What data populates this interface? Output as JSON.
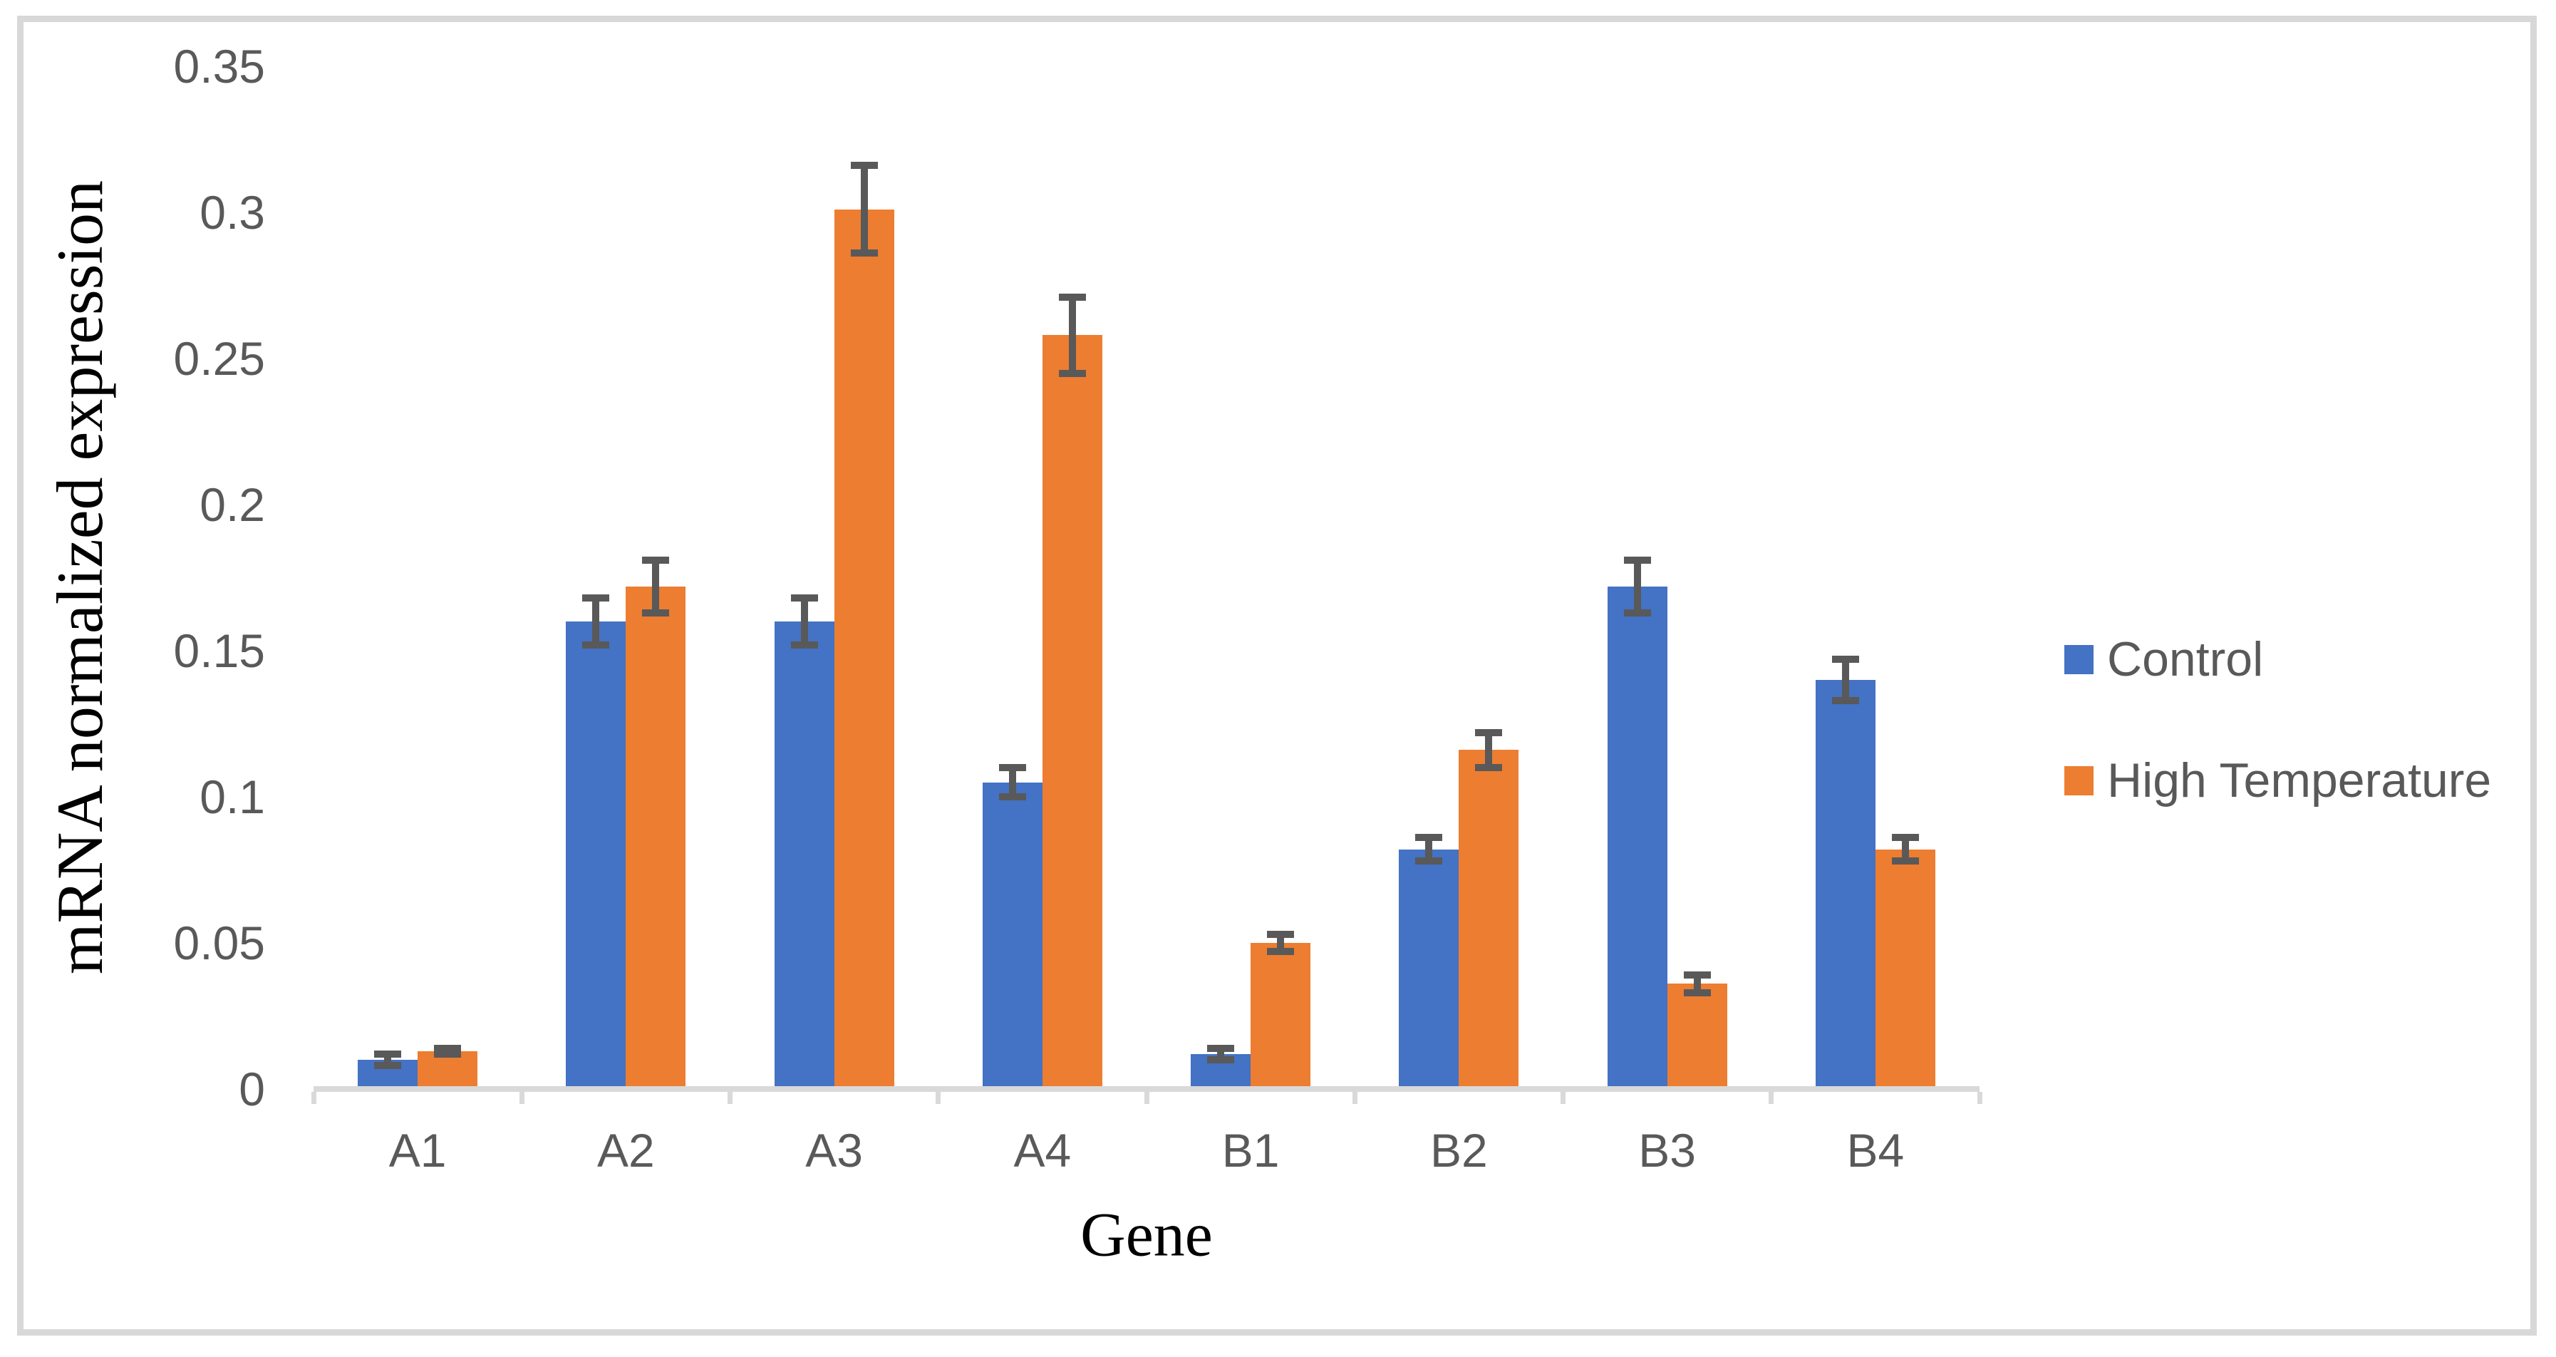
{
  "figure": {
    "background_color": "#FFFFFF",
    "frame_color": "#D8D8D8"
  },
  "chart_data": {
    "type": "bar",
    "title": "",
    "xlabel": "Gene",
    "ylabel": "mRNA normalized expression",
    "categories": [
      "A1",
      "A2",
      "A3",
      "A4",
      "B1",
      "B2",
      "B3",
      "B4"
    ],
    "series": [
      {
        "name": "Control",
        "color": "#4472C4",
        "values": [
          0.01,
          0.16,
          0.16,
          0.105,
          0.012,
          0.082,
          0.172,
          0.14
        ],
        "errors": [
          0.002,
          0.008,
          0.008,
          0.005,
          0.002,
          0.004,
          0.009,
          0.007
        ]
      },
      {
        "name": "High Temperature",
        "color": "#ED7D31",
        "values": [
          0.013,
          0.172,
          0.301,
          0.258,
          0.05,
          0.116,
          0.036,
          0.082
        ],
        "errors": [
          0.001,
          0.009,
          0.015,
          0.013,
          0.003,
          0.006,
          0.003,
          0.004
        ]
      }
    ],
    "ylim": [
      0,
      0.35
    ],
    "yticks": [
      0,
      0.05,
      0.1,
      0.15,
      0.2,
      0.25,
      0.3,
      0.35
    ],
    "ytick_labels": [
      "0",
      "0.05",
      "0.1",
      "0.15",
      "0.2",
      "0.25",
      "0.3",
      "0.35"
    ],
    "grid": false,
    "legend_position": "right",
    "error_bar_color": "#595959",
    "axis_line_color": "#D9D9D9",
    "tick_label_color": "#595959"
  }
}
